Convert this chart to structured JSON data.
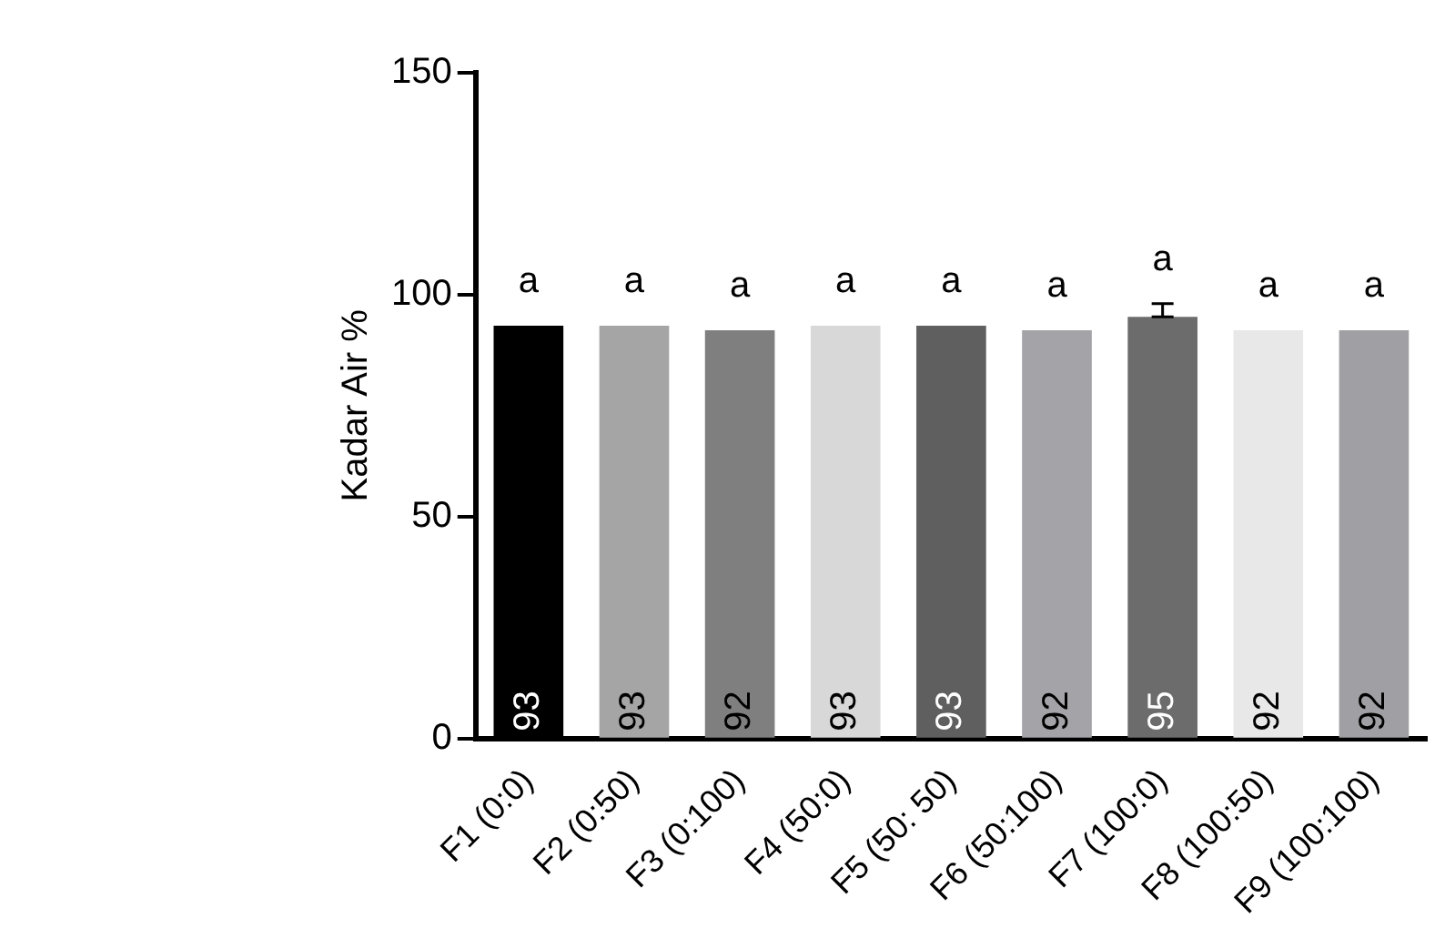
{
  "chart_data": {
    "type": "bar",
    "ylabel": "Kadar Air %",
    "categories": [
      "F1 (0:0)",
      "F2 (0:50)",
      "F3 (0:100)",
      "F4 (50:0)",
      "F5 (50: 50)",
      "F6 (50:100)",
      "F7 (100:0)",
      "F8 (100:50)",
      "F9 (100:100)"
    ],
    "values": [
      93,
      93,
      92,
      93,
      93,
      92,
      95,
      92,
      92
    ],
    "colors": [
      "#000000",
      "#a5a5a5",
      "#7f7f7f",
      "#d8d8d8",
      "#5f5f5f",
      "#a3a3a8",
      "#6c6c6c",
      "#e8e8e8",
      "#a0a0a4"
    ],
    "errors": [
      null,
      null,
      null,
      null,
      null,
      null,
      [
        95,
        98
      ],
      null,
      null
    ],
    "ylim": [
      0,
      150
    ],
    "yticks": [
      0,
      50,
      100,
      150
    ],
    "grid": false,
    "legend": false,
    "data_labels": true,
    "annotations": [
      "a",
      "a",
      "a",
      "a",
      "a",
      "a",
      "a",
      "a",
      "a"
    ]
  }
}
